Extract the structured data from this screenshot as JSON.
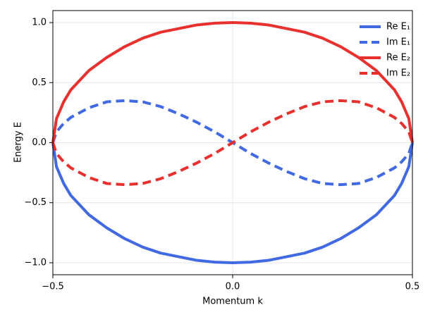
{
  "chart_data": {
    "type": "line",
    "x_label": "Momentum k",
    "y_label": "Energy E",
    "x": [
      -0.5,
      -0.49,
      -0.47,
      -0.45,
      -0.4,
      -0.35,
      -0.3,
      -0.25,
      -0.2,
      -0.15,
      -0.1,
      -0.05,
      0,
      0.05,
      0.1,
      0.15,
      0.2,
      0.25,
      0.3,
      0.35,
      0.4,
      0.45,
      0.47,
      0.49,
      0.5
    ],
    "series": [
      {
        "name": "Re E₁",
        "color": "#4169e1",
        "style": "solid",
        "values": [
          0,
          -0.2,
          -0.34,
          -0.44,
          -0.6,
          -0.71,
          -0.8,
          -0.87,
          -0.92,
          -0.95,
          -0.98,
          -0.995,
          -1,
          -0.995,
          -0.98,
          -0.95,
          -0.92,
          -0.87,
          -0.8,
          -0.71,
          -0.6,
          -0.44,
          -0.34,
          -0.2,
          0
        ]
      },
      {
        "name": "Im E₁",
        "color": "#4169e1",
        "style": "dashed",
        "values": [
          0,
          0.09,
          0.16,
          0.21,
          0.29,
          0.34,
          0.35,
          0.34,
          0.3,
          0.24,
          0.17,
          0.09,
          0,
          -0.09,
          -0.17,
          -0.24,
          -0.3,
          -0.34,
          -0.35,
          -0.34,
          -0.29,
          -0.21,
          -0.16,
          -0.09,
          0
        ]
      },
      {
        "name": "Re E₂",
        "color": "#e8302e",
        "style": "solid",
        "values": [
          0,
          0.2,
          0.34,
          0.44,
          0.6,
          0.71,
          0.8,
          0.87,
          0.92,
          0.95,
          0.98,
          0.995,
          1,
          0.995,
          0.98,
          0.95,
          0.92,
          0.87,
          0.8,
          0.71,
          0.6,
          0.44,
          0.34,
          0.2,
          0
        ]
      },
      {
        "name": "Im E₂",
        "color": "#e8302e",
        "style": "dashed",
        "values": [
          0,
          -0.09,
          -0.16,
          -0.21,
          -0.29,
          -0.34,
          -0.35,
          -0.34,
          -0.3,
          -0.24,
          -0.17,
          -0.09,
          0,
          0.09,
          0.17,
          0.24,
          0.3,
          0.34,
          0.35,
          0.34,
          0.29,
          0.21,
          0.16,
          0.09,
          0
        ]
      }
    ],
    "xlim": [
      -0.5,
      0.5
    ],
    "xticks": [
      {
        "value": -0.5,
        "label": "−0.5"
      },
      {
        "value": 0,
        "label": "0.0"
      },
      {
        "value": 0.5,
        "label": "0.5"
      }
    ],
    "ylim": [
      -1.1,
      1.1
    ],
    "yticks": [
      {
        "value": -1,
        "label": "−1.0"
      },
      {
        "value": -0.5,
        "label": "−0.5"
      },
      {
        "value": 0,
        "label": "0.0"
      },
      {
        "value": 0.5,
        "label": "0.5"
      },
      {
        "value": 1,
        "label": "1.0"
      }
    ],
    "grid": true,
    "legend": "top-right"
  }
}
